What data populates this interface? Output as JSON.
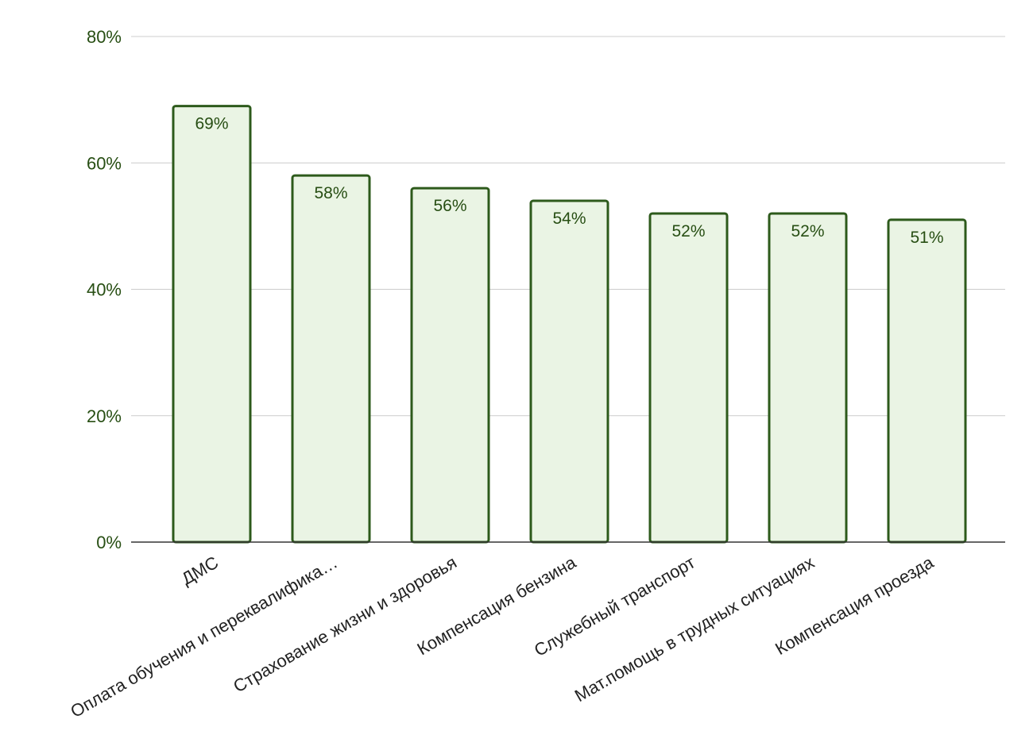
{
  "chart_data": {
    "type": "bar",
    "title": "",
    "xlabel": "",
    "ylabel": "",
    "categories": [
      "ДМС",
      "Оплата обучения и переквалифика…",
      "Страхование жизни и здоровья",
      "Компенсация бензина",
      "Служебный транспорт",
      "Мат.помощь в трудных ситуациях",
      "Компенсация проезда"
    ],
    "values": [
      69,
      58,
      56,
      54,
      52,
      52,
      51
    ],
    "value_labels": [
      "69%",
      "58%",
      "56%",
      "54%",
      "52%",
      "52%",
      "51%"
    ],
    "ylim": [
      0,
      80
    ],
    "yticks": [
      0,
      20,
      40,
      60,
      80
    ],
    "ytick_labels": [
      "0%",
      "20%",
      "40%",
      "60%",
      "80%"
    ],
    "grid": true,
    "legend": "none",
    "colors": {
      "bar_fill": "#eaf4e4",
      "bar_stroke": "#2d5a1b",
      "tick_text": "#274e13",
      "grid": "#cccccc",
      "axis": "#333333"
    }
  }
}
